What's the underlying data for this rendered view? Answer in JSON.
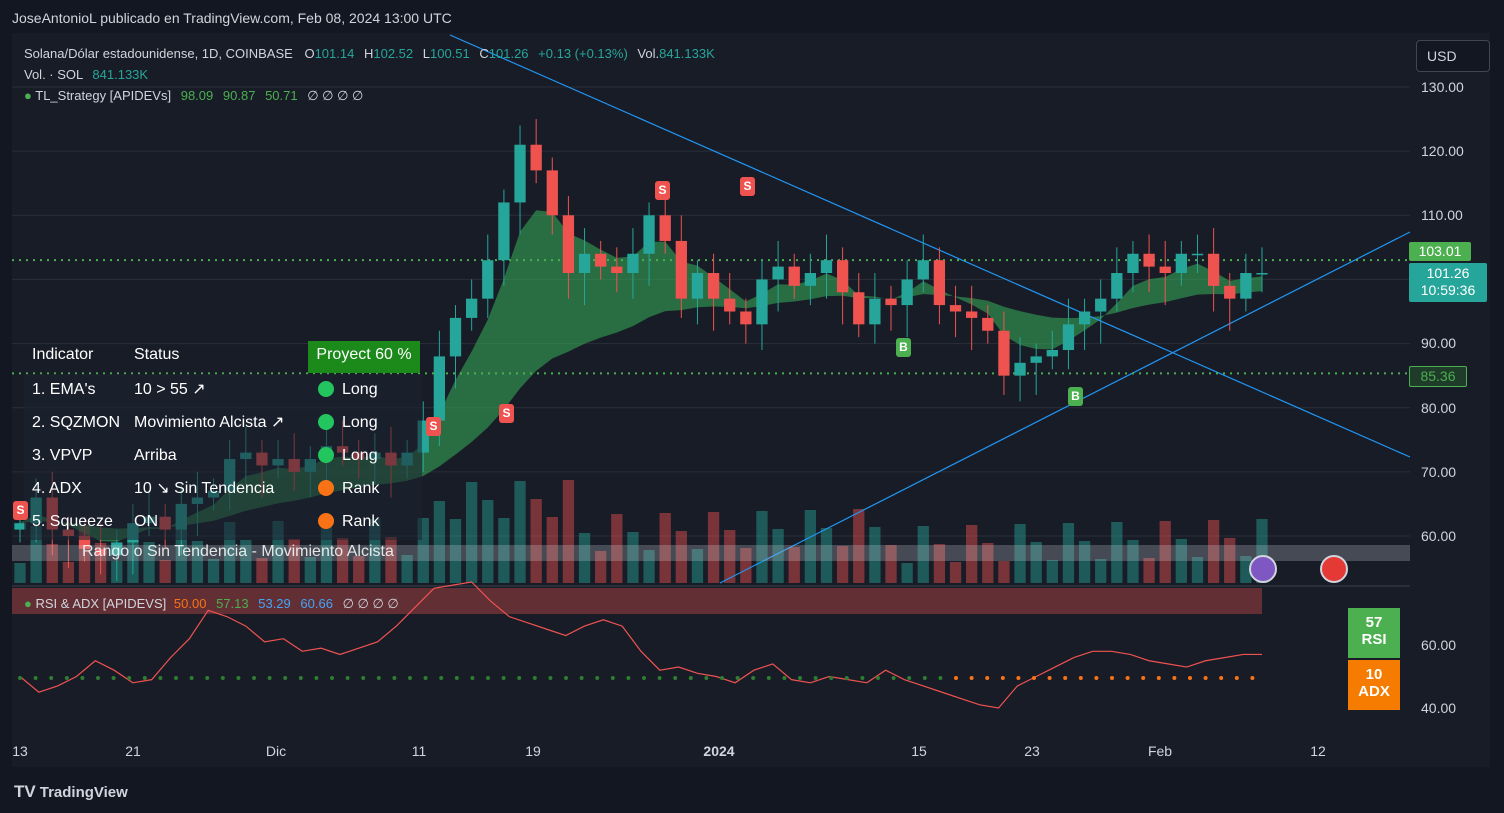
{
  "header": {
    "credit": "JoseAntonioL publicado en TradingView.com, Feb 08, 2024 13:00 UTC",
    "currency_button": "USD"
  },
  "legend": {
    "symbol": "Solana/Dólar estadounidense, 1D, COINBASE",
    "o_label": "O",
    "o_val": "101.14",
    "h_label": "H",
    "h_val": "102.52",
    "l_label": "L",
    "l_val": "100.51",
    "c_label": "C",
    "c_val": "101.26",
    "change": "+0.13 (+0.13%)",
    "vol_label": "Vol.",
    "vol_val": "841.133K",
    "vol_row_label": "Vol. · SOL",
    "vol_row_val": "841.133K",
    "strategy_label": "TL_Strategy [APIDEVs]",
    "strategy_vals": [
      "98.09",
      "90.87",
      "50.71"
    ],
    "empty_marks": "∅ ∅ ∅ ∅"
  },
  "indicator_table": {
    "col_indicator": "Indicator",
    "col_status": "Status",
    "col_project": "Proyect 60 %",
    "rows": [
      {
        "name": "1. EMA's",
        "status": "10 > 55 ↗",
        "signal": "Long",
        "color": "#22c55e"
      },
      {
        "name": "2. SQZMON",
        "status": "Movimiento Alcista ↗",
        "signal": "Long",
        "color": "#22c55e"
      },
      {
        "name": "3. VPVP",
        "status": "Arriba",
        "signal": "Long",
        "color": "#22c55e"
      },
      {
        "name": "4. ADX",
        "status": "10 ↘ Sin Tendencia",
        "signal": "Rank",
        "color": "#f97316"
      },
      {
        "name": "5. Squeeze",
        "status": "ON",
        "signal": "Rank",
        "color": "#f97316"
      }
    ],
    "footer": "Rango o Sin Tendencia - Movimiento Alcista"
  },
  "rsi_legend": {
    "label": "RSI & ADX [APIDEVS]",
    "vals": [
      "50.00",
      "57.13",
      "53.29",
      "60.66"
    ],
    "empty_marks": "∅ ∅ ∅ ∅"
  },
  "price_axis": [
    "130.00",
    "120.00",
    "110.00",
    "90.00",
    "80.00",
    "70.00",
    "60.00"
  ],
  "rsi_axis": [
    "60.00",
    "40.00"
  ],
  "price_tags": {
    "resistance": "103.01",
    "current_price": "101.26",
    "countdown": "10:59:36",
    "support": "85.36"
  },
  "rsi_boxes": {
    "rsi_value": "57",
    "rsi_label": "RSI",
    "adx_value": "10",
    "adx_label": "ADX"
  },
  "x_axis": [
    "13",
    "21",
    "Dic",
    "11",
    "19",
    "2024",
    "15",
    "23",
    "Feb",
    "12"
  ],
  "brand": "TradingView",
  "colors": {
    "up": "#26a69a",
    "down": "#ef5350",
    "accent": "#2196f3",
    "level": "#4caf50"
  },
  "chart_data": {
    "type": "candlestick",
    "title": "Solana/Dólar estadounidense, 1D, COINBASE",
    "ylim": [
      55,
      135
    ],
    "x": [
      "2023-11-13",
      "2023-11-21",
      "2023-12-01",
      "2023-12-11",
      "2023-12-19",
      "2024-01-01",
      "2024-01-15",
      "2024-01-23",
      "2024-02-01",
      "2024-02-12"
    ],
    "levels": [
      103.01,
      85.36
    ],
    "close_series": [
      62,
      66,
      61,
      60,
      58,
      57,
      59,
      62,
      63,
      61,
      65,
      66,
      67,
      72,
      73,
      71,
      72,
      70,
      72,
      74,
      73,
      72,
      73,
      71,
      73,
      78,
      88,
      94,
      97,
      103,
      112,
      121,
      117,
      110,
      101,
      104,
      102,
      101,
      104,
      110,
      106,
      97,
      101,
      97,
      95,
      93,
      100,
      102,
      99,
      101,
      103,
      98,
      93,
      97,
      96,
      100,
      103,
      96,
      95,
      94,
      92,
      85,
      87,
      88,
      89,
      93,
      95,
      97,
      101,
      104,
      102,
      101,
      104,
      104,
      99,
      97,
      101,
      101
    ],
    "rsi": [
      50,
      45,
      47,
      50,
      55,
      52,
      48,
      49,
      56,
      62,
      71,
      69,
      66,
      61,
      62,
      58,
      59,
      57,
      59,
      61,
      66,
      72,
      78,
      79,
      80,
      74,
      69,
      67,
      65,
      63,
      66,
      68,
      66,
      58,
      52,
      53,
      51,
      50,
      48,
      52,
      54,
      49,
      48,
      50,
      49,
      48,
      52,
      49,
      47,
      45,
      43,
      41,
      40,
      47,
      50,
      53,
      56,
      58,
      58,
      57,
      55,
      54,
      53,
      55,
      56,
      57,
      57
    ]
  }
}
